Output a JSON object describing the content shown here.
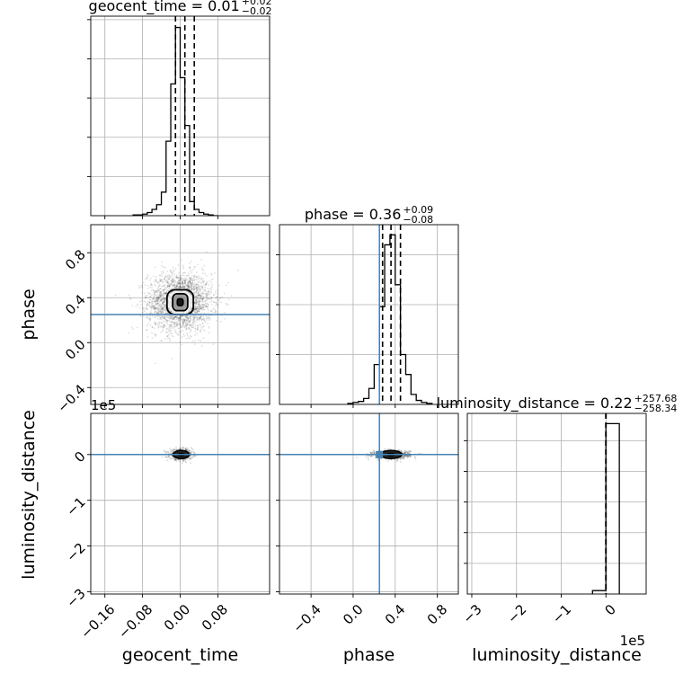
{
  "chart_data": {
    "type": "corner",
    "parameters": [
      "geocent_time",
      "phase",
      "luminosity_distance"
    ],
    "truth_color": "#4682b4",
    "panels": {
      "geocent_time_hist": {
        "title_main": "geocent_time = 0.01",
        "title_sup": "+0.02",
        "title_sub": "−0.02",
        "xlim": [
          -0.19,
          0.19
        ],
        "bin_edges": [
          -0.1,
          -0.09,
          -0.08,
          -0.07,
          -0.06,
          -0.05,
          -0.04,
          -0.03,
          -0.02,
          -0.01,
          0.0,
          0.01,
          0.02,
          0.03,
          0.04,
          0.05,
          0.06,
          0.07,
          0.08
        ],
        "counts": [
          1,
          1,
          2,
          4,
          8,
          14,
          30,
          95,
          168,
          240,
          176,
          115,
          18,
          8,
          4,
          2,
          1,
          0
        ],
        "quantiles": [
          -0.01,
          0.01,
          0.03
        ],
        "median": 0.01
      },
      "phase_hist": {
        "title_main": "phase = 0.36",
        "title_sup": "+0.09",
        "title_sub": "−0.08",
        "xlim": [
          -0.7,
          1.0
        ],
        "bin_edges": [
          -0.05,
          0.0,
          0.05,
          0.1,
          0.15,
          0.2,
          0.25,
          0.3,
          0.35,
          0.4,
          0.45,
          0.5,
          0.55,
          0.6,
          0.65,
          0.7,
          0.75
        ],
        "counts": [
          1,
          2,
          3,
          6,
          16,
          40,
          98,
          160,
          170,
          120,
          50,
          30,
          10,
          4,
          2,
          1
        ],
        "quantiles": [
          0.28,
          0.36,
          0.45
        ],
        "truth": 0.25
      },
      "luminosity_distance_hist": {
        "title_main": "luminosity_distance = 0.22",
        "title_sup": "+257.68",
        "title_sub": "−258.34",
        "xlim": [
          -310000,
          90000
        ],
        "bin_edges": [
          -30000,
          0,
          30000
        ],
        "counts": [
          2,
          100
        ],
        "quantiles": [
          -258.12,
          0.22,
          257.9
        ]
      },
      "phase_vs_geocent_time": {
        "xlim": [
          -0.19,
          0.19
        ],
        "ylim": [
          -0.55,
          1.05
        ],
        "center": [
          0.0,
          0.36
        ],
        "contour_levels": [
          [
            0.028,
            0.11
          ],
          [
            0.016,
            0.075
          ],
          [
            0.006,
            0.03
          ]
        ],
        "truth_y": 0.25
      },
      "luminosity_distance_vs_geocent_time": {
        "xlim": [
          -0.19,
          0.19
        ],
        "ylim": [
          -305000,
          90000
        ],
        "center": [
          0.002,
          0
        ],
        "truth_y": 0
      },
      "luminosity_distance_vs_phase": {
        "xlim": [
          -0.7,
          1.0
        ],
        "ylim": [
          -305000,
          90000
        ],
        "center": [
          0.36,
          0
        ],
        "truth_x": 0.25,
        "truth_y": 0
      }
    },
    "axis_labels": {
      "geocent_time": "geocent_time",
      "phase": "phase",
      "luminosity_distance": "luminosity_distance"
    },
    "ticks": {
      "geocent_time": {
        "values": [
          -0.16,
          -0.08,
          0.0,
          0.08
        ],
        "labels": [
          "−0.16",
          "−0.08",
          "0.00",
          "0.08"
        ]
      },
      "phase": {
        "values": [
          -0.4,
          0.0,
          0.4,
          0.8
        ],
        "labels": [
          "−0.4",
          "0.0",
          "0.4",
          "0.8"
        ]
      },
      "luminosity_distance": {
        "values": [
          -300000,
          -200000,
          -100000,
          0
        ],
        "labels": [
          "−3",
          "−2",
          "−1",
          "0"
        ]
      }
    },
    "offset_label": "1e5"
  }
}
